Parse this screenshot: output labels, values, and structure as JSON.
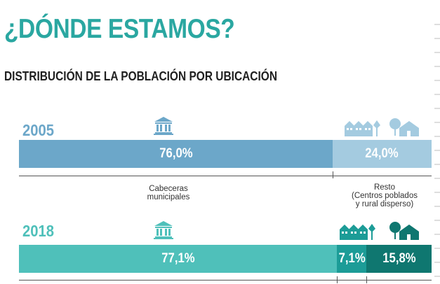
{
  "title": "¿DÓNDE ESTAMOS?",
  "subtitle": "DISTRIBUCIÓN DE LA POBLACIÓN POR UBICACIÓN",
  "labels": {
    "cabeceras": "Cabeceras\nmunicipales",
    "resto": "Resto\n(Centros poblados\ny rural disperso)"
  },
  "colors": {
    "title": "#2aa7a1",
    "y2005_main": "#6ca7c9",
    "y2005_rest": "#a4cbe0",
    "y2018_main": "#4fc0ba",
    "y2018_pob": "#1c9c97",
    "y2018_rural": "#0f7770"
  },
  "icons": [
    "government-building-icon",
    "houses-icon",
    "rural-house-icon"
  ],
  "chart_data": {
    "type": "bar",
    "orientation": "horizontal-stacked",
    "title": "DISTRIBUCIÓN DE LA POBLACIÓN POR UBICACIÓN",
    "xlim": [
      0,
      100
    ],
    "rows": [
      {
        "year": "2005",
        "segments": [
          {
            "value": 76.0,
            "label": "76,0%",
            "color": "#6ca7c9"
          },
          {
            "value": 24.0,
            "label": "24,0%",
            "color": "#a4cbe0"
          }
        ]
      },
      {
        "year": "2018",
        "segments": [
          {
            "value": 77.1,
            "label": "77,1%",
            "color": "#4fc0ba"
          },
          {
            "value": 7.1,
            "label": "7,1%",
            "color": "#1c9c97"
          },
          {
            "value": 15.8,
            "label": "15,8%",
            "color": "#0f7770"
          }
        ]
      }
    ]
  }
}
